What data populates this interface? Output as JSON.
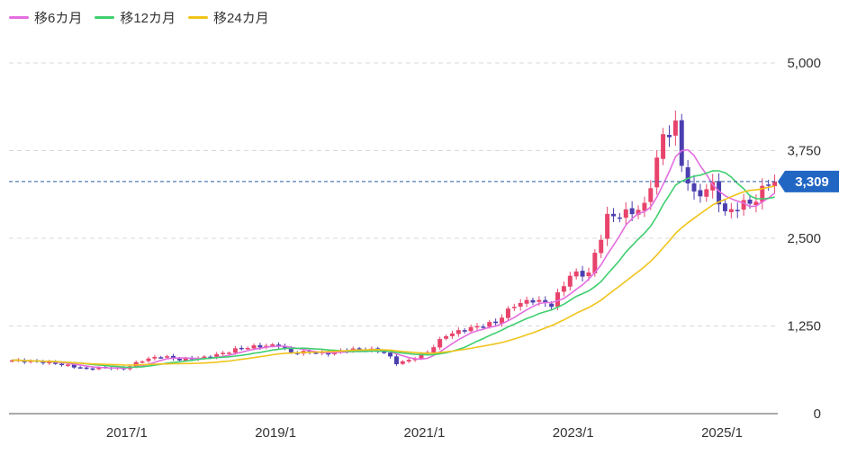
{
  "colors": {
    "up": "#e8436b",
    "down": "#4b3fb0",
    "ma6": "#e46ee0",
    "ma12": "#3fcf6f",
    "ma24": "#f0c419",
    "grid": "#d9d9d9",
    "current_line": "#2a5aa8",
    "price_tag": "#2266c4"
  },
  "chart_data": {
    "type": "candlestick",
    "interval": "monthly",
    "grid": true,
    "legend_position": "top-left",
    "legend": [
      {
        "name": "移6カ月",
        "color": "#e46ee0"
      },
      {
        "name": "移12カ月",
        "color": "#3fcf6f"
      },
      {
        "name": "移24カ月",
        "color": "#f0c419"
      }
    ],
    "x_range": [
      "2015-06",
      "2025-09"
    ],
    "x_ticks": [
      {
        "label": "2017/1",
        "date": "2017-01"
      },
      {
        "label": "2019/1",
        "date": "2019-01"
      },
      {
        "label": "2021/1",
        "date": "2021-01"
      },
      {
        "label": "2023/1",
        "date": "2023-01"
      },
      {
        "label": "2025/1",
        "date": "2025-01"
      }
    ],
    "y_range": [
      0,
      5000
    ],
    "y_ticks": [
      {
        "label": "5,000",
        "value": 5000
      },
      {
        "label": "3,750",
        "value": 3750
      },
      {
        "label": "2,500",
        "value": 2500
      },
      {
        "label": "1,250",
        "value": 1250
      },
      {
        "label": "0",
        "value": 0
      }
    ],
    "current_price": {
      "value": 3309,
      "label": "3,309"
    },
    "close_anchors": [
      [
        "2015-06",
        760
      ],
      [
        "2015-12",
        730
      ],
      [
        "2016-06",
        640
      ],
      [
        "2016-09",
        660
      ],
      [
        "2016-12",
        640
      ],
      [
        "2017-03",
        760
      ],
      [
        "2017-06",
        820
      ],
      [
        "2017-09",
        770
      ],
      [
        "2018-01",
        800
      ],
      [
        "2018-04",
        860
      ],
      [
        "2018-07",
        940
      ],
      [
        "2018-10",
        960
      ],
      [
        "2019-01",
        980
      ],
      [
        "2019-03",
        870
      ],
      [
        "2019-06",
        880
      ],
      [
        "2019-09",
        860
      ],
      [
        "2019-12",
        910
      ],
      [
        "2020-03",
        920
      ],
      [
        "2020-06",
        880
      ],
      [
        "2020-08",
        720
      ],
      [
        "2020-10",
        760
      ],
      [
        "2021-01",
        880
      ],
      [
        "2021-04",
        1120
      ],
      [
        "2021-08",
        1220
      ],
      [
        "2021-12",
        1300
      ],
      [
        "2022-03",
        1550
      ],
      [
        "2022-06",
        1620
      ],
      [
        "2022-09",
        1550
      ],
      [
        "2022-12",
        1980
      ],
      [
        "2023-03",
        2000
      ],
      [
        "2023-06",
        2800
      ],
      [
        "2023-09",
        2850
      ],
      [
        "2023-12",
        2950
      ],
      [
        "2024-03",
        3950
      ],
      [
        "2024-05",
        4100
      ],
      [
        "2024-06",
        3550
      ],
      [
        "2024-08",
        3100
      ],
      [
        "2024-11",
        3250
      ],
      [
        "2025-01",
        2850
      ],
      [
        "2025-03",
        2950
      ],
      [
        "2025-06",
        3050
      ],
      [
        "2025-08",
        3309
      ]
    ],
    "moving_averages": [
      {
        "name": "移6カ月",
        "window": 6
      },
      {
        "name": "移12カ月",
        "window": 12
      },
      {
        "name": "移24カ月",
        "window": 24
      }
    ]
  }
}
